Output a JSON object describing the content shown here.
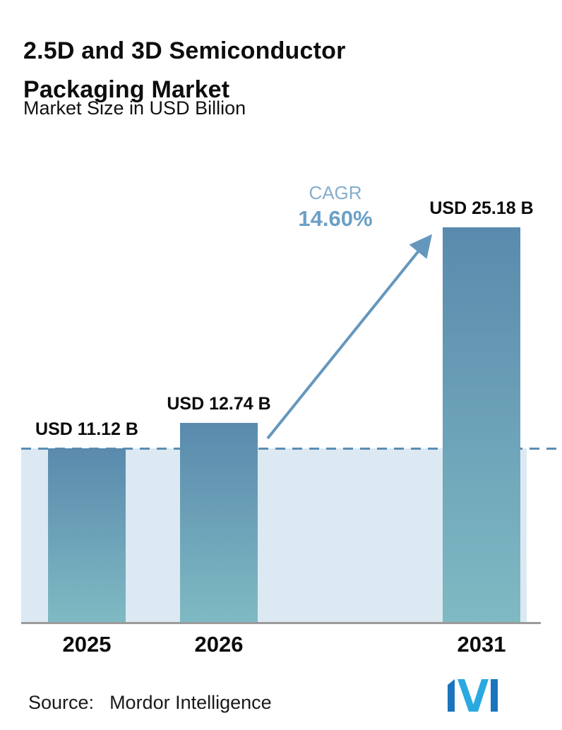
{
  "header": {
    "title": "2.5D and 3D Semiconductor Packaging Market",
    "subtitle": "Market Size in USD Billion"
  },
  "annotation": {
    "cagr_label": "CAGR",
    "cagr_value": "14.60%"
  },
  "footer": {
    "source_label": "Source:",
    "source_value": "Mordor Intelligence"
  },
  "colors": {
    "bar_top": "#5a8aad",
    "bar_bottom": "#7fbac3",
    "band": "#dde9f2",
    "dash": "#5d8db1",
    "arrow": "#6597bd",
    "cagr_text": "#85aecd",
    "cagr_value": "#6ba0c6",
    "axis": "#9b9b9b",
    "logo_dark": "#1b75bc",
    "logo_light": "#2aa9e0"
  },
  "chart_data": {
    "type": "bar",
    "title": "2.5D and 3D Semiconductor Packaging Market",
    "subtitle": "Market Size in USD Billion",
    "unit": "USD Billion",
    "categories": [
      "2025",
      "2026",
      "2031"
    ],
    "values": [
      11.12,
      12.74,
      25.18
    ],
    "value_labels": [
      "USD 11.12 B",
      "USD 12.74 B",
      "USD 25.18 B"
    ],
    "ylim": [
      0,
      26
    ],
    "grid": false,
    "legend": "none",
    "annotations": [
      {
        "type": "dashed-reference-line",
        "y": 11.12
      },
      {
        "type": "growth-arrow",
        "from_category": "2026",
        "to_category": "2031",
        "label": "CAGR 14.60%"
      }
    ]
  }
}
